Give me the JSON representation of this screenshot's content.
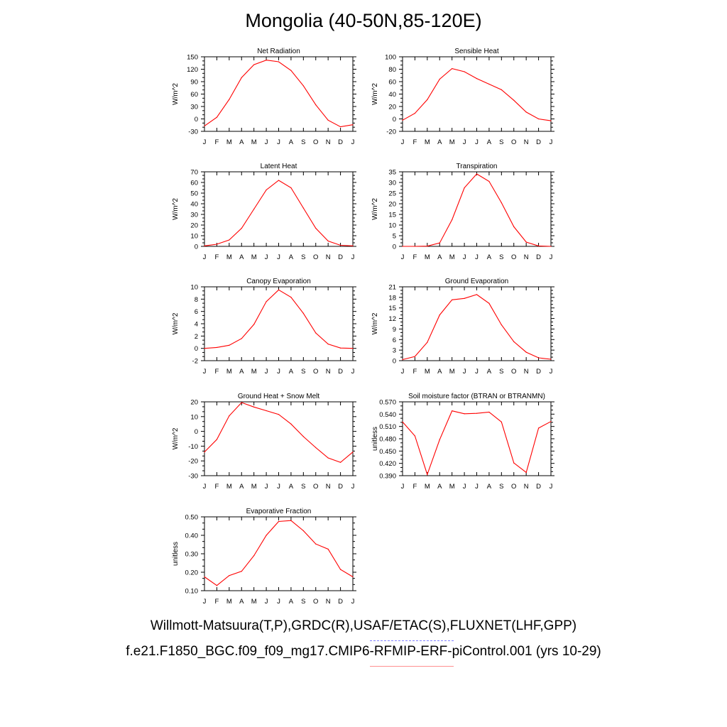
{
  "title": "Mongolia (40-50N,85-120E)",
  "footer": {
    "line1": "Willmott-Matsuura(T,P),GRDC(R),USAF/ETAC(S),FLUXNET(LHF,GPP)",
    "line2": "f.e21.F1850_BGC.f09_f09_mg17.CMIP6-RFMIP-ERF-piControl.001 (yrs 10-29)"
  },
  "colors": {
    "series": "#ff0000",
    "axis": "#000000"
  },
  "chart_data": [
    {
      "type": "line",
      "title": "Net Radiation",
      "ylabel": "W/m^2",
      "x": [
        "J",
        "F",
        "M",
        "A",
        "M",
        "J",
        "J",
        "A",
        "S",
        "O",
        "N",
        "D",
        "J"
      ],
      "ylim": [
        -30,
        150
      ],
      "yticks": [
        "-30",
        "0",
        "30",
        "60",
        "90",
        "120",
        "150"
      ],
      "series": [
        {
          "values": [
            -17,
            4,
            47,
            100,
            131,
            142,
            138,
            117,
            80,
            34,
            -3,
            -19,
            -14
          ]
        }
      ]
    },
    {
      "type": "line",
      "title": "Sensible Heat",
      "ylabel": "W/m^2",
      "x": [
        "J",
        "F",
        "M",
        "A",
        "M",
        "J",
        "J",
        "A",
        "S",
        "O",
        "N",
        "D",
        "J"
      ],
      "ylim": [
        -20,
        100
      ],
      "yticks": [
        "-20",
        "0",
        "20",
        "40",
        "60",
        "80",
        "100"
      ],
      "series": [
        {
          "values": [
            -2,
            9,
            31,
            64,
            81,
            76,
            65,
            56,
            47,
            30,
            11,
            0,
            -3
          ]
        }
      ]
    },
    {
      "type": "line",
      "title": "Latent Heat",
      "ylabel": "W/m^2",
      "x": [
        "J",
        "F",
        "M",
        "A",
        "M",
        "J",
        "J",
        "A",
        "S",
        "O",
        "N",
        "D",
        "J"
      ],
      "ylim": [
        0,
        70
      ],
      "yticks": [
        "0",
        "10",
        "20",
        "30",
        "40",
        "50",
        "60",
        "70"
      ],
      "series": [
        {
          "values": [
            0.5,
            2,
            6,
            17,
            35,
            53,
            62,
            55,
            36,
            17,
            5,
            1,
            0.5
          ]
        }
      ]
    },
    {
      "type": "line",
      "title": "Transpiration",
      "ylabel": "W/m^2",
      "x": [
        "J",
        "F",
        "M",
        "A",
        "M",
        "J",
        "J",
        "A",
        "S",
        "O",
        "N",
        "D",
        "J"
      ],
      "ylim": [
        0,
        35
      ],
      "yticks": [
        "0",
        "5",
        "10",
        "15",
        "20",
        "25",
        "30",
        "35"
      ],
      "series": [
        {
          "values": [
            0,
            0,
            0.1,
            1.6,
            12.5,
            27.5,
            34,
            30.5,
            20.5,
            9.2,
            2,
            0.2,
            0
          ]
        }
      ]
    },
    {
      "type": "line",
      "title": "Canopy Evaporation",
      "ylabel": "W/m^2",
      "x": [
        "J",
        "F",
        "M",
        "A",
        "M",
        "J",
        "J",
        "A",
        "S",
        "O",
        "N",
        "D",
        "J"
      ],
      "ylim": [
        -2,
        10
      ],
      "yticks": [
        "-2",
        "0",
        "2",
        "4",
        "6",
        "8",
        "10"
      ],
      "series": [
        {
          "values": [
            0,
            0.15,
            0.5,
            1.6,
            3.9,
            7.6,
            9.5,
            8.3,
            5.7,
            2.5,
            0.7,
            0.05,
            0
          ]
        }
      ]
    },
    {
      "type": "line",
      "title": "Ground Evaporation",
      "ylabel": "W/m^2",
      "x": [
        "J",
        "F",
        "M",
        "A",
        "M",
        "J",
        "J",
        "A",
        "S",
        "O",
        "N",
        "D",
        "J"
      ],
      "ylim": [
        0,
        21
      ],
      "yticks": [
        "0",
        "3",
        "6",
        "9",
        "12",
        "15",
        "18",
        "21"
      ],
      "series": [
        {
          "values": [
            0.3,
            1.2,
            5.2,
            13,
            17.3,
            17.7,
            18.8,
            16.3,
            10.2,
            5.4,
            2.4,
            0.8,
            0.4
          ]
        }
      ]
    },
    {
      "type": "line",
      "title": "Ground Heat + Snow Melt",
      "ylabel": "W/m^2",
      "x": [
        "J",
        "F",
        "M",
        "A",
        "M",
        "J",
        "J",
        "A",
        "S",
        "O",
        "N",
        "D",
        "J"
      ],
      "ylim": [
        -30,
        20
      ],
      "yticks": [
        "-30",
        "-20",
        "-10",
        "0",
        "10",
        "20"
      ],
      "series": [
        {
          "values": [
            -14,
            -5.5,
            10.5,
            19.5,
            16.5,
            14,
            11.5,
            5,
            -3.5,
            -11,
            -18,
            -21,
            -14
          ]
        }
      ]
    },
    {
      "type": "line",
      "title": "Soil moisture factor (BTRAN or BTRANMN)",
      "ylabel": "unitless",
      "x": [
        "J",
        "F",
        "M",
        "A",
        "M",
        "J",
        "J",
        "A",
        "S",
        "O",
        "N",
        "D",
        "J"
      ],
      "ylim": [
        0.39,
        0.57
      ],
      "yticks": [
        "0.390",
        "0.420",
        "0.450",
        "0.480",
        "0.510",
        "0.540",
        "0.570"
      ],
      "series": [
        {
          "values": [
            0.521,
            0.487,
            0.393,
            0.478,
            0.548,
            0.541,
            0.542,
            0.545,
            0.521,
            0.421,
            0.398,
            0.506,
            0.522
          ]
        }
      ]
    },
    {
      "type": "line",
      "title": "Evaporative Fraction",
      "ylabel": "unitless",
      "x": [
        "J",
        "F",
        "M",
        "A",
        "M",
        "J",
        "J",
        "A",
        "S",
        "O",
        "N",
        "D",
        "J"
      ],
      "ylim": [
        0.1,
        0.5
      ],
      "yticks": [
        "0.10",
        "0.20",
        "0.30",
        "0.40",
        "0.50"
      ],
      "series": [
        {
          "values": [
            0.175,
            0.128,
            0.182,
            0.205,
            0.29,
            0.4,
            0.475,
            0.48,
            0.425,
            0.353,
            0.325,
            0.215,
            0.175
          ]
        }
      ]
    }
  ]
}
